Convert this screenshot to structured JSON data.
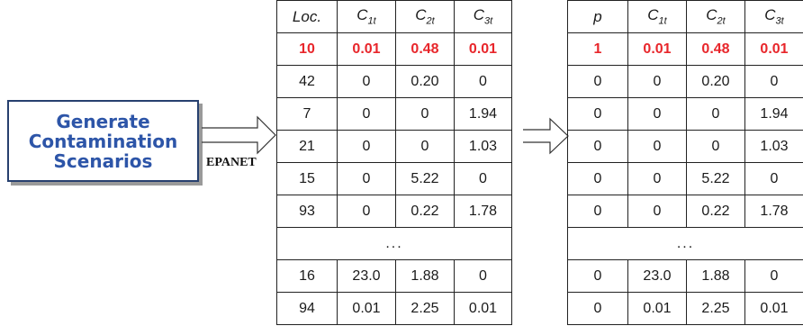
{
  "generator": {
    "lines": [
      "Generate",
      "Contamination",
      "Scenarios"
    ]
  },
  "arrow_label": "EPANET",
  "left_table": {
    "header": [
      {
        "main": "Loc.",
        "sub": ""
      },
      {
        "main": "C",
        "sub": "1t"
      },
      {
        "main": "C",
        "sub": "2t"
      },
      {
        "main": "C",
        "sub": "3t"
      }
    ],
    "rows_top": [
      [
        "10",
        "0.01",
        "0.48",
        "0.01"
      ],
      [
        "42",
        "0",
        "0.20",
        "0"
      ],
      [
        "7",
        "0",
        "0",
        "1.94"
      ],
      [
        "21",
        "0",
        "0",
        "1.03"
      ],
      [
        "15",
        "0",
        "5.22",
        "0"
      ],
      [
        "93",
        "0",
        "0.22",
        "1.78"
      ]
    ],
    "ellipsis": "...",
    "rows_bottom": [
      [
        "16",
        "23.0",
        "1.88",
        "0"
      ],
      [
        "94",
        "0.01",
        "2.25",
        "0.01"
      ]
    ]
  },
  "right_table": {
    "header": [
      {
        "main": "p",
        "sub": ""
      },
      {
        "main": "C",
        "sub": "1t"
      },
      {
        "main": "C",
        "sub": "2t"
      },
      {
        "main": "C",
        "sub": "3t"
      }
    ],
    "rows_top": [
      [
        "1",
        "0.01",
        "0.48",
        "0.01"
      ],
      [
        "0",
        "0",
        "0.20",
        "0"
      ],
      [
        "0",
        "0",
        "0",
        "1.94"
      ],
      [
        "0",
        "0",
        "0",
        "1.03"
      ],
      [
        "0",
        "0",
        "5.22",
        "0"
      ],
      [
        "0",
        "0",
        "0.22",
        "1.78"
      ]
    ],
    "ellipsis": "...",
    "rows_bottom": [
      [
        "0",
        "23.0",
        "1.88",
        "0"
      ],
      [
        "0",
        "0.01",
        "2.25",
        "0.01"
      ]
    ]
  },
  "colors": {
    "highlight": "#e8262b",
    "generator_text": "#2d55a8",
    "generator_border": "#27406f"
  }
}
